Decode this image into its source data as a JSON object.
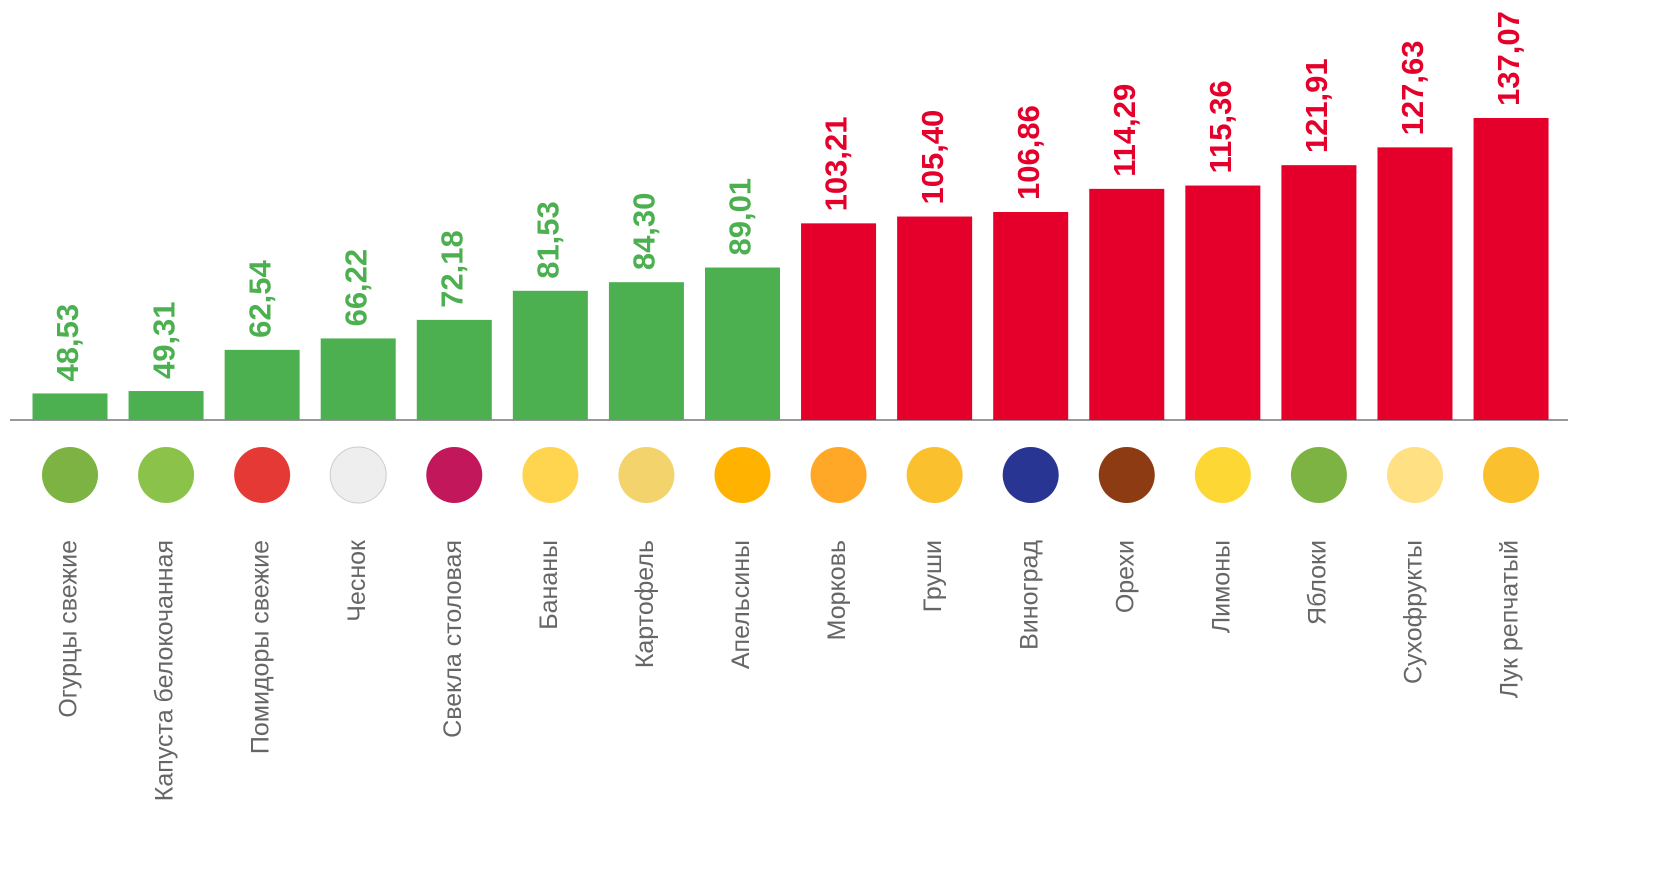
{
  "chart_data": {
    "type": "bar",
    "categories": [
      "Огурцы свежие",
      "Капуста белокочанная",
      "Помидоры свежие",
      "Чеснок",
      "Свекла столовая",
      "Бананы",
      "Картофель",
      "Апельсины",
      "Морковь",
      "Груши",
      "Виноград",
      "Орехи",
      "Лимоны",
      "Яблоки",
      "Сухофрукты",
      "Лук репчатый"
    ],
    "values": [
      48.53,
      49.31,
      62.54,
      66.22,
      72.18,
      81.53,
      84.3,
      89.01,
      103.21,
      105.4,
      106.86,
      114.29,
      115.36,
      121.91,
      127.63,
      137.07
    ],
    "value_labels": [
      "48,53",
      "49,31",
      "62,54",
      "66,22",
      "72,18",
      "81,53",
      "84,30",
      "89,01",
      "103,21",
      "105,40",
      "106,86",
      "114,29",
      "115,36",
      "121,91",
      "127,63",
      "137,07"
    ],
    "colors": [
      "#4caf50",
      "#4caf50",
      "#4caf50",
      "#4caf50",
      "#4caf50",
      "#4caf50",
      "#4caf50",
      "#4caf50",
      "#e4002b",
      "#e4002b",
      "#e4002b",
      "#e4002b",
      "#e4002b",
      "#e4002b",
      "#e4002b",
      "#e4002b"
    ],
    "ylim": [
      40,
      175
    ]
  }
}
